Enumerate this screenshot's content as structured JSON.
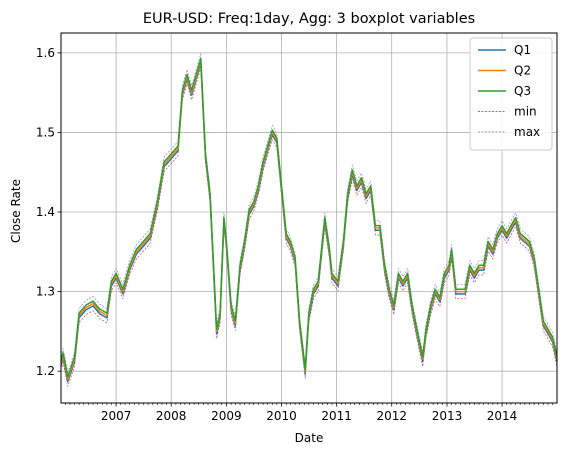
{
  "chart_data": {
    "type": "line",
    "title": "EUR-USD: Freq:1day, Agg: 3 boxplot variables",
    "xlabel": "Date",
    "ylabel": "Close Rate",
    "xlim": [
      "2006-01-01",
      "2014-12-31"
    ],
    "ylim": [
      1.16,
      1.625
    ],
    "yticks": [
      1.2,
      1.3,
      1.4,
      1.5,
      1.6
    ],
    "ytick_labels": [
      "1.2",
      "1.3",
      "1.4",
      "1.5",
      "1.6"
    ],
    "xticks": [
      "2007-01-01",
      "2008-01-01",
      "2009-01-01",
      "2010-01-01",
      "2011-01-01",
      "2012-01-01",
      "2013-01-01",
      "2014-01-01"
    ],
    "xtick_labels": [
      "2007",
      "2008",
      "2009",
      "2010",
      "2011",
      "2012",
      "2013",
      "2014"
    ],
    "grid": true,
    "legend_position": "top-right",
    "series": [
      {
        "name": "Q1",
        "color": "#1f77b4",
        "style": "solid",
        "offset": -0.003
      },
      {
        "name": "Q2",
        "color": "#ff7f0e",
        "style": "solid",
        "offset": 0.0
      },
      {
        "name": "Q3",
        "color": "#2ca02c",
        "style": "solid",
        "offset": 0.003
      },
      {
        "name": "min",
        "color": "#d62728",
        "style": "dashed",
        "offset": -0.009
      },
      {
        "name": "max",
        "color": "#9467bd",
        "style": "dashed",
        "offset": 0.009
      }
    ],
    "x": [
      "2006-01-01",
      "2006-01-15",
      "2006-02-15",
      "2006-04-01",
      "2006-05-01",
      "2006-06-15",
      "2006-08-01",
      "2006-09-15",
      "2006-11-01",
      "2006-12-01",
      "2007-01-01",
      "2007-02-15",
      "2007-04-01",
      "2007-05-15",
      "2007-07-01",
      "2007-08-15",
      "2007-10-01",
      "2007-11-15",
      "2008-01-01",
      "2008-02-15",
      "2008-03-15",
      "2008-04-15",
      "2008-05-15",
      "2008-06-15",
      "2008-07-15",
      "2008-08-15",
      "2008-09-15",
      "2008-10-15",
      "2008-10-28",
      "2008-11-20",
      "2008-12-15",
      "2009-01-01",
      "2009-02-01",
      "2009-03-01",
      "2009-04-01",
      "2009-05-01",
      "2009-06-01",
      "2009-07-01",
      "2009-08-01",
      "2009-09-01",
      "2009-10-01",
      "2009-11-01",
      "2009-12-01",
      "2010-01-01",
      "2010-02-01",
      "2010-03-01",
      "2010-04-01",
      "2010-05-01",
      "2010-06-07",
      "2010-07-01",
      "2010-08-01",
      "2010-09-01",
      "2010-10-15",
      "2010-11-15",
      "2010-12-01",
      "2011-01-10",
      "2011-02-15",
      "2011-03-15",
      "2011-04-15",
      "2011-05-15",
      "2011-06-15",
      "2011-07-15",
      "2011-08-15",
      "2011-09-15",
      "2011-10-15",
      "2011-11-15",
      "2011-12-15",
      "2012-01-15",
      "2012-02-15",
      "2012-03-15",
      "2012-04-15",
      "2012-05-15",
      "2012-06-15",
      "2012-07-24",
      "2012-08-15",
      "2012-09-15",
      "2012-10-15",
      "2012-11-15",
      "2012-12-15",
      "2013-01-15",
      "2013-02-01",
      "2013-03-01",
      "2013-04-01",
      "2013-05-01",
      "2013-06-01",
      "2013-07-01",
      "2013-08-01",
      "2013-09-01",
      "2013-10-01",
      "2013-11-01",
      "2013-12-01",
      "2014-01-01",
      "2014-02-01",
      "2014-03-01",
      "2014-04-01",
      "2014-05-01",
      "2014-06-01",
      "2014-07-01",
      "2014-08-01",
      "2014-09-01",
      "2014-10-01",
      "2014-11-01",
      "2014-12-01",
      "2014-12-31"
    ],
    "y": [
      1.21,
      1.22,
      1.19,
      1.215,
      1.27,
      1.28,
      1.285,
      1.275,
      1.27,
      1.31,
      1.32,
      1.3,
      1.33,
      1.35,
      1.36,
      1.37,
      1.41,
      1.46,
      1.47,
      1.48,
      1.55,
      1.57,
      1.55,
      1.57,
      1.59,
      1.47,
      1.42,
      1.3,
      1.25,
      1.27,
      1.39,
      1.36,
      1.28,
      1.26,
      1.33,
      1.36,
      1.4,
      1.41,
      1.43,
      1.46,
      1.48,
      1.5,
      1.49,
      1.43,
      1.37,
      1.36,
      1.34,
      1.26,
      1.2,
      1.27,
      1.3,
      1.31,
      1.39,
      1.35,
      1.32,
      1.31,
      1.36,
      1.42,
      1.45,
      1.43,
      1.44,
      1.42,
      1.43,
      1.38,
      1.38,
      1.33,
      1.3,
      1.28,
      1.32,
      1.31,
      1.32,
      1.28,
      1.25,
      1.215,
      1.25,
      1.28,
      1.3,
      1.29,
      1.32,
      1.33,
      1.35,
      1.3,
      1.3,
      1.3,
      1.33,
      1.32,
      1.33,
      1.33,
      1.36,
      1.35,
      1.37,
      1.38,
      1.37,
      1.38,
      1.39,
      1.37,
      1.365,
      1.36,
      1.34,
      1.3,
      1.26,
      1.25,
      1.24,
      1.215
    ]
  }
}
